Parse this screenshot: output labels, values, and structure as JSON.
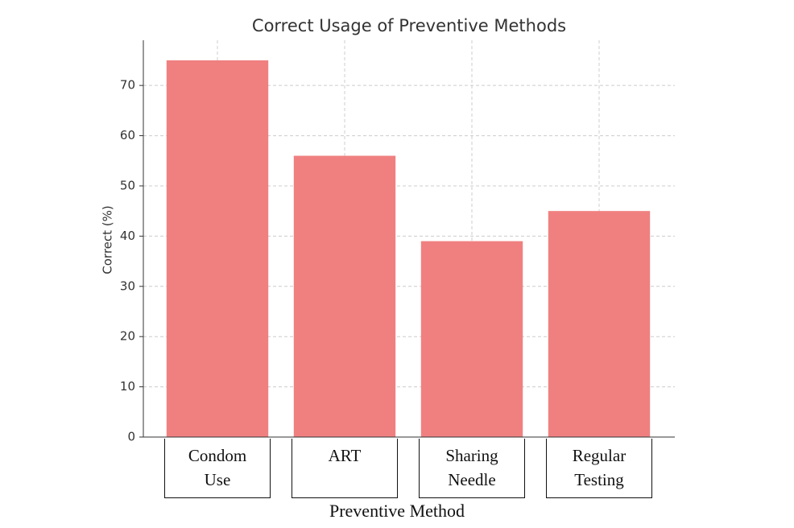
{
  "chart_data": {
    "type": "bar",
    "title": "Correct Usage of Preventive Methods",
    "x_label": "Preventive Method",
    "y_label": "Correct (%)",
    "categories": [
      "Condom Use",
      "ART",
      "Sharing Needle",
      "Regular Testing"
    ],
    "values": [
      75,
      56,
      39,
      45
    ],
    "color": "#f08080",
    "ylim": [
      0,
      79
    ],
    "yticks": [
      0,
      10,
      20,
      30,
      40,
      50,
      60,
      70
    ],
    "grid": true
  }
}
